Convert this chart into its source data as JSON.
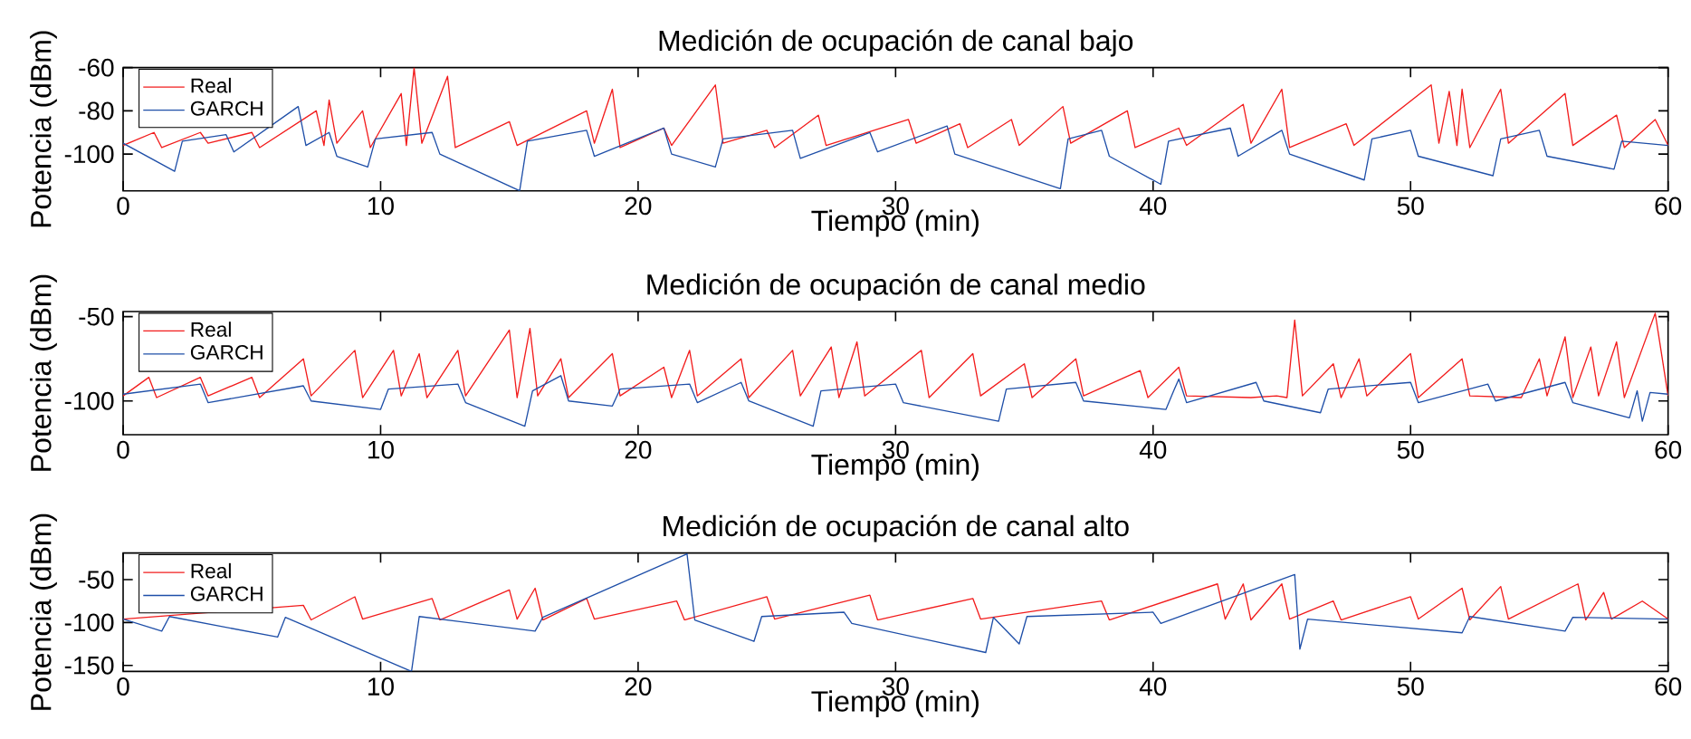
{
  "chart_data": [
    {
      "type": "line",
      "title": "Medición de ocupación de canal bajo",
      "xlabel": "Tiempo (min)",
      "ylabel": "Potencia (dBm)",
      "xlim": [
        0,
        60
      ],
      "xticks": [
        0,
        10,
        20,
        30,
        40,
        50,
        60
      ],
      "ylim": [
        -117,
        -60
      ],
      "yticks": [
        -100,
        -80,
        -60
      ],
      "legend": "top left",
      "series": [
        {
          "name": "Real",
          "color": "#f21c1c",
          "x": [
            0,
            1.2,
            1.5,
            3,
            3.3,
            5,
            5.3,
            7.5,
            7.8,
            8,
            8.3,
            9.3,
            9.6,
            10.8,
            11,
            11.3,
            11.6,
            12.6,
            12.9,
            15,
            15.3,
            18,
            18.3,
            19,
            19.3,
            21,
            21.3,
            23,
            23.3,
            25,
            25.3,
            27,
            27.3,
            30.5,
            30.8,
            32.5,
            32.8,
            34.5,
            34.8,
            36.5,
            36.8,
            39,
            39.3,
            41,
            41.3,
            43.5,
            43.8,
            45,
            45.3,
            47.5,
            47.8,
            50.8,
            51.1,
            51.5,
            51.8,
            52,
            52.3,
            53.5,
            53.8,
            56,
            56.3,
            58,
            58.3,
            59.5,
            60
          ],
          "values": [
            -96,
            -90,
            -97,
            -90,
            -95,
            -90,
            -97,
            -80,
            -96,
            -75,
            -95,
            -80,
            -97,
            -72,
            -96,
            -60,
            -95,
            -64,
            -97,
            -85,
            -96,
            -80,
            -95,
            -70,
            -97,
            -88,
            -96,
            -68,
            -95,
            -89,
            -97,
            -82,
            -96,
            -84,
            -95,
            -86,
            -97,
            -84,
            -96,
            -78,
            -95,
            -80,
            -97,
            -88,
            -96,
            -77,
            -95,
            -70,
            -97,
            -86,
            -96,
            -68,
            -95,
            -71,
            -96,
            -70,
            -97,
            -70,
            -95,
            -72,
            -96,
            -82,
            -97,
            -84,
            -96
          ]
        },
        {
          "name": "GARCH",
          "color": "#1f4fa8",
          "x": [
            0,
            2,
            2.3,
            4,
            4.3,
            6.8,
            7.1,
            8,
            8.3,
            9.5,
            9.8,
            12,
            12.3,
            15.4,
            15.7,
            18,
            18.3,
            21,
            21.3,
            23,
            23.3,
            26,
            26.3,
            29,
            29.3,
            32,
            32.3,
            36.4,
            36.7,
            38,
            38.3,
            40.3,
            40.6,
            43,
            43.3,
            45,
            45.3,
            48.2,
            48.5,
            50,
            50.3,
            53.2,
            53.5,
            55,
            55.3,
            57.9,
            58.2,
            60
          ],
          "values": [
            -95,
            -108,
            -94,
            -91,
            -99,
            -78,
            -96,
            -90,
            -101,
            -106,
            -93,
            -90,
            -100,
            -117,
            -94,
            -89,
            -101,
            -88,
            -100,
            -106,
            -93,
            -89,
            -102,
            -90,
            -99,
            -87,
            -100,
            -116,
            -93,
            -89,
            -101,
            -114,
            -94,
            -88,
            -101,
            -89,
            -100,
            -112,
            -93,
            -89,
            -101,
            -110,
            -93,
            -89,
            -101,
            -107,
            -94,
            -96
          ]
        }
      ]
    },
    {
      "type": "line",
      "title": "Medición de ocupación de canal medio",
      "xlabel": "Tiempo (min)",
      "ylabel": "Potencia (dBm)",
      "xlim": [
        0,
        60
      ],
      "xticks": [
        0,
        10,
        20,
        30,
        40,
        50,
        60
      ],
      "ylim": [
        -120,
        -47
      ],
      "yticks": [
        -100,
        -50
      ],
      "legend": "top left",
      "series": [
        {
          "name": "Real",
          "color": "#f21c1c",
          "x": [
            0,
            1,
            1.3,
            3,
            3.3,
            5,
            5.3,
            7,
            7.3,
            9,
            9.3,
            10.5,
            10.8,
            11.5,
            11.8,
            13,
            13.3,
            15,
            15.3,
            15.8,
            16.1,
            17,
            17.3,
            19,
            19.3,
            21,
            21.3,
            22,
            22.3,
            24,
            24.3,
            26,
            26.3,
            27.5,
            27.8,
            28.5,
            28.8,
            31,
            31.3,
            33,
            33.3,
            35,
            35.3,
            37,
            37.3,
            39.5,
            39.8,
            41,
            41.3,
            43.5,
            43.8,
            44.5,
            44.8,
            45,
            45.2,
            45.5,
            45.8,
            47,
            47.3,
            48,
            48.3,
            50,
            50.3,
            52,
            52.3,
            54,
            54.3,
            55,
            55.3,
            56,
            56.3,
            57,
            57.3,
            58,
            58.3,
            59.5,
            60
          ],
          "values": [
            -97,
            -86,
            -98,
            -86,
            -97,
            -86,
            -98,
            -75,
            -97,
            -70,
            -98,
            -70,
            -97,
            -72,
            -98,
            -70,
            -97,
            -58,
            -98,
            -57,
            -97,
            -75,
            -98,
            -72,
            -97,
            -80,
            -98,
            -70,
            -97,
            -75,
            -98,
            -70,
            -97,
            -68,
            -98,
            -65,
            -97,
            -70,
            -98,
            -72,
            -97,
            -78,
            -98,
            -75,
            -97,
            -82,
            -98,
            -80,
            -97,
            null,
            -98,
            null,
            -97,
            null,
            -98,
            -52,
            -97,
            -78,
            -98,
            -75,
            -97,
            -72,
            -98,
            -75,
            -97,
            null,
            -98,
            -75,
            -97,
            -62,
            -98,
            -68,
            -97,
            -65,
            -98,
            -48,
            -97
          ]
        },
        {
          "name": "GARCH",
          "color": "#1f4fa8",
          "x": [
            0,
            3,
            3.3,
            7,
            7.3,
            10,
            10.3,
            13,
            13.3,
            15.6,
            15.9,
            17,
            17.3,
            19,
            19.3,
            22,
            22.3,
            24,
            24.3,
            26.8,
            27.1,
            30,
            30.3,
            34,
            34.3,
            37,
            37.3,
            40.5,
            40.8,
            41,
            41.3,
            44,
            44.3,
            46.5,
            46.8,
            50,
            50.3,
            53,
            53.3,
            56,
            56.3,
            58.5,
            58.8,
            59,
            59.3,
            60
          ],
          "values": [
            -96,
            -90,
            -101,
            -91,
            -100,
            -105,
            -93,
            -90,
            -101,
            -115,
            -94,
            -85,
            -100,
            -103,
            -93,
            -90,
            -101,
            -89,
            -100,
            -115,
            -94,
            -90,
            -101,
            -112,
            -93,
            -89,
            -100,
            -105,
            -94,
            -87,
            -101,
            -89,
            -100,
            -107,
            -93,
            -89,
            -101,
            -90,
            -100,
            -89,
            -101,
            -110,
            -94,
            -112,
            -95,
            -96
          ]
        }
      ]
    },
    {
      "type": "line",
      "title": "Medición de ocupación de canal alto",
      "xlabel": "Tiempo (min)",
      "ylabel": "Potencia (dBm)",
      "xlim": [
        0,
        60
      ],
      "xticks": [
        0,
        10,
        20,
        30,
        40,
        50,
        60
      ],
      "ylim": [
        -157,
        -19
      ],
      "yticks": [
        -150,
        -100,
        -50
      ],
      "legend": "top left",
      "series": [
        {
          "name": "Real",
          "color": "#f21c1c",
          "x": [
            0,
            7,
            7.3,
            9,
            9.3,
            12,
            12.3,
            15,
            15.3,
            16,
            16.3,
            18,
            18.3,
            21.5,
            21.8,
            25,
            25.3,
            29,
            29.3,
            33,
            33.3,
            38,
            38.3,
            42.5,
            42.8,
            43.5,
            43.8,
            45,
            45.3,
            47,
            47.3,
            50,
            50.3,
            52,
            52.3,
            53.5,
            53.8,
            56.5,
            56.8,
            57.5,
            57.8,
            59,
            60
          ],
          "values": [
            -96,
            -80,
            -97,
            -70,
            -96,
            -72,
            -97,
            -62,
            -96,
            -60,
            -97,
            -72,
            -96,
            -75,
            -97,
            -70,
            -96,
            -68,
            -97,
            -72,
            -96,
            -75,
            -97,
            -55,
            -96,
            -55,
            -97,
            -55,
            -96,
            -75,
            -97,
            -70,
            -96,
            -60,
            -97,
            -58,
            -96,
            -55,
            -97,
            -65,
            -96,
            -75,
            -96
          ]
        },
        {
          "name": "GARCH",
          "color": "#1f4fa8",
          "x": [
            0,
            1.5,
            1.8,
            6,
            6.3,
            11.2,
            11.5,
            16,
            16.3,
            21.9,
            22.2,
            24.5,
            24.8,
            28,
            28.3,
            33.5,
            33.8,
            34.8,
            35.1,
            40,
            40.3,
            45.5,
            45.7,
            46,
            52,
            52.3,
            56,
            56.3,
            60
          ],
          "values": [
            -96,
            -110,
            -93,
            -117,
            -94,
            -157,
            -93,
            -110,
            -94,
            -20,
            -97,
            -122,
            -93,
            -88,
            -101,
            -135,
            -94,
            -125,
            -93,
            -88,
            -101,
            -44,
            -131,
            -96,
            -112,
            -93,
            -110,
            -94,
            -96
          ]
        }
      ]
    }
  ]
}
